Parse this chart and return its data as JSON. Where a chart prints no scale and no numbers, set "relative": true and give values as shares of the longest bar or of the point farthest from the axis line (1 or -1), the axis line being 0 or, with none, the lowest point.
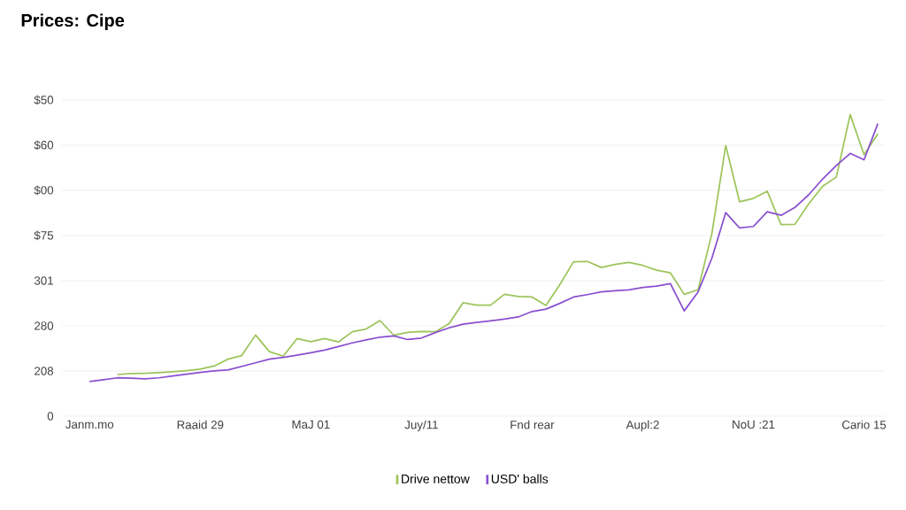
{
  "chart_data": {
    "type": "line",
    "title": "Prices: Cipe",
    "relative": true,
    "categories": [
      null,
      "Janm.mo",
      null,
      null,
      null,
      null,
      null,
      null,
      null,
      "Raaid 29",
      null,
      null,
      null,
      null,
      null,
      null,
      null,
      "MaJ 01",
      null,
      null,
      null,
      null,
      null,
      null,
      null,
      "Juy/11",
      null,
      null,
      null,
      null,
      null,
      null,
      null,
      "Fnd rear",
      null,
      null,
      null,
      null,
      null,
      null,
      null,
      "Aupl:2",
      null,
      null,
      null,
      null,
      null,
      null,
      null,
      "NoU :21",
      null,
      null,
      null,
      null,
      null,
      null,
      null,
      "Cario 15",
      null
    ],
    "annotations": [
      "$50",
      "$60",
      "$00",
      "$75",
      "301",
      "280",
      "208",
      "0"
    ],
    "grid": "y",
    "legend": "bottom",
    "series": [
      {
        "name": "Drive nettow",
        "color": "#9dc45a",
        "values": [
          null,
          null,
          null,
          0.138,
          0.141,
          0.142,
          0.144,
          0.147,
          0.151,
          0.156,
          0.166,
          0.189,
          0.201,
          0.269,
          0.214,
          0.199,
          0.257,
          0.247,
          0.257,
          0.246,
          0.28,
          0.289,
          0.317,
          0.268,
          0.278,
          0.281,
          0.28,
          0.307,
          0.376,
          0.368,
          0.368,
          0.404,
          0.397,
          0.395,
          0.367,
          0.436,
          0.512,
          0.513,
          0.493,
          0.503,
          0.51,
          0.5,
          0.484,
          0.475,
          0.404,
          0.419,
          0.606,
          0.897,
          0.711,
          0.722,
          0.746,
          0.635,
          0.636,
          0.704,
          0.762,
          0.793,
          1,
          0.867,
          0.936
        ]
      },
      {
        "name": "USD' balls",
        "color": "#8a4fd0",
        "values": [
          null,
          0.115,
          0.121,
          0.127,
          0.126,
          0.124,
          0.127,
          0.133,
          0.139,
          0.145,
          0.15,
          0.153,
          0.165,
          0.177,
          0.189,
          0.195,
          0.202,
          0.21,
          0.219,
          0.231,
          0.243,
          0.253,
          0.262,
          0.266,
          0.254,
          0.259,
          0.277,
          0.293,
          0.305,
          0.311,
          0.316,
          0.322,
          0.329,
          0.347,
          0.355,
          0.374,
          0.395,
          0.403,
          0.412,
          0.416,
          0.419,
          0.427,
          0.431,
          0.439,
          0.349,
          0.412,
          0.524,
          0.675,
          0.624,
          0.629,
          0.678,
          0.666,
          0.692,
          0.734,
          0.786,
          0.831,
          0.871,
          0.85,
          0.97
        ]
      }
    ]
  }
}
